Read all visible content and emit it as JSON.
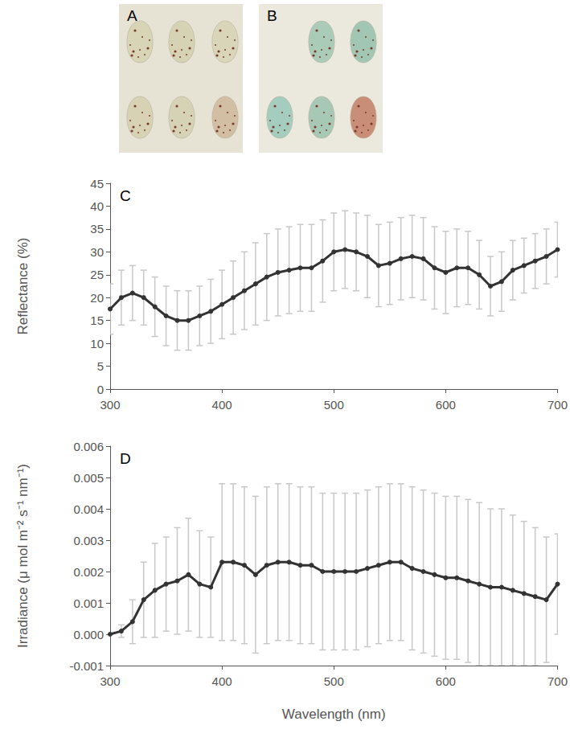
{
  "photos": [
    {
      "panel": "A"
    },
    {
      "panel": "B"
    }
  ],
  "chart_data": [
    {
      "type": "line",
      "panel": "C",
      "y_label": "Reflectance (%)",
      "marker": "circle",
      "color": "#333333",
      "error_color": "#c8c8c8",
      "x": [
        300,
        310,
        320,
        330,
        340,
        350,
        360,
        370,
        380,
        390,
        400,
        410,
        420,
        430,
        440,
        450,
        460,
        470,
        480,
        490,
        500,
        510,
        520,
        530,
        540,
        550,
        560,
        570,
        580,
        590,
        600,
        610,
        620,
        630,
        640,
        650,
        660,
        670,
        680,
        690,
        700
      ],
      "values": [
        17.5,
        20,
        21,
        20,
        18,
        16,
        15,
        15,
        16,
        17,
        18.5,
        20,
        21.5,
        23,
        24.5,
        25.5,
        26,
        26.5,
        26.5,
        28,
        30,
        30.5,
        30,
        29,
        27,
        27.5,
        28.5,
        29,
        28.5,
        26.5,
        25.5,
        26.5,
        26.5,
        25,
        22.5,
        23.5,
        26,
        27,
        28,
        29,
        30.5
      ],
      "errors": [
        5.5,
        6,
        6,
        6,
        6.5,
        6.5,
        6.5,
        6.5,
        6.5,
        7,
        7.5,
        8,
        8.5,
        9,
        9.5,
        9.5,
        9.5,
        9.5,
        9.5,
        9,
        8.5,
        8.5,
        8.5,
        9,
        9,
        9,
        9,
        9,
        9,
        9,
        9,
        8.5,
        8,
        7.5,
        6.5,
        6.5,
        6.5,
        6,
        6,
        6,
        6
      ],
      "xlim": [
        300,
        700
      ],
      "xticks": [
        300,
        400,
        500,
        600,
        700
      ],
      "ylim": [
        0,
        45
      ],
      "yticks": [
        0,
        5,
        10,
        15,
        20,
        25,
        30,
        35,
        40,
        45
      ],
      "grid": false
    },
    {
      "type": "line",
      "panel": "D",
      "x_label": "Wavelength (nm)",
      "y_label": "Irradiance (μ mol m⁻² s⁻¹ nm⁻¹)",
      "marker": "circle",
      "color": "#333333",
      "error_color": "#c8c8c8",
      "x": [
        300,
        310,
        320,
        330,
        340,
        350,
        360,
        370,
        380,
        390,
        400,
        410,
        420,
        430,
        440,
        450,
        460,
        470,
        480,
        490,
        500,
        510,
        520,
        530,
        540,
        550,
        560,
        570,
        580,
        590,
        600,
        610,
        620,
        630,
        640,
        650,
        660,
        670,
        680,
        690,
        700
      ],
      "values": [
        0,
        0.0001,
        0.0004,
        0.0011,
        0.0014,
        0.0016,
        0.0017,
        0.0019,
        0.0016,
        0.0015,
        0.0023,
        0.0023,
        0.0022,
        0.0019,
        0.0022,
        0.0023,
        0.0023,
        0.0022,
        0.0022,
        0.002,
        0.002,
        0.002,
        0.002,
        0.0021,
        0.0022,
        0.0023,
        0.0023,
        0.0021,
        0.002,
        0.0019,
        0.0018,
        0.0018,
        0.0017,
        0.0016,
        0.0015,
        0.0015,
        0.0014,
        0.0013,
        0.0012,
        0.0011,
        0.0016
      ],
      "errors": [
        0,
        0.0002,
        0.0007,
        0.0012,
        0.0015,
        0.0015,
        0.0017,
        0.0018,
        0.0017,
        0.0016,
        0.0025,
        0.0025,
        0.0025,
        0.0025,
        0.0025,
        0.0025,
        0.0025,
        0.0025,
        0.0025,
        0.0025,
        0.0025,
        0.0025,
        0.0025,
        0.0025,
        0.0025,
        0.0025,
        0.0025,
        0.0026,
        0.0026,
        0.0026,
        0.0026,
        0.0026,
        0.0026,
        0.0026,
        0.0025,
        0.0025,
        0.0024,
        0.0023,
        0.0022,
        0.002,
        0.0016
      ],
      "xlim": [
        300,
        700
      ],
      "xticks": [
        300,
        400,
        500,
        600,
        700
      ],
      "ylim": [
        -0.001,
        0.006
      ],
      "yticks": [
        -0.001,
        {
          "value": 0,
          "label": "0.000"
        },
        0.001,
        0.002,
        0.003,
        0.004,
        0.005,
        0.006
      ],
      "grid": false
    }
  ]
}
